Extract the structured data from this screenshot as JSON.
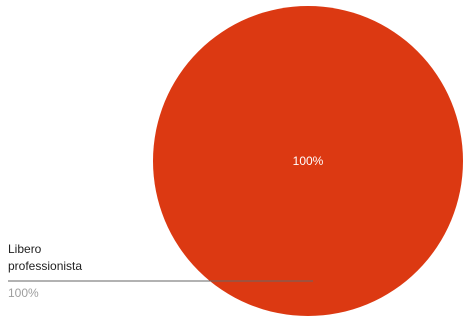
{
  "chart_data": {
    "type": "pie",
    "slices": [
      {
        "name_lines": [
          "Libero",
          "professionista"
        ],
        "value": 100,
        "label": "100%",
        "legend_percent": "100%",
        "color": "#dc3912"
      }
    ],
    "legend_placement": "left",
    "leader_line_color": "#666666"
  }
}
